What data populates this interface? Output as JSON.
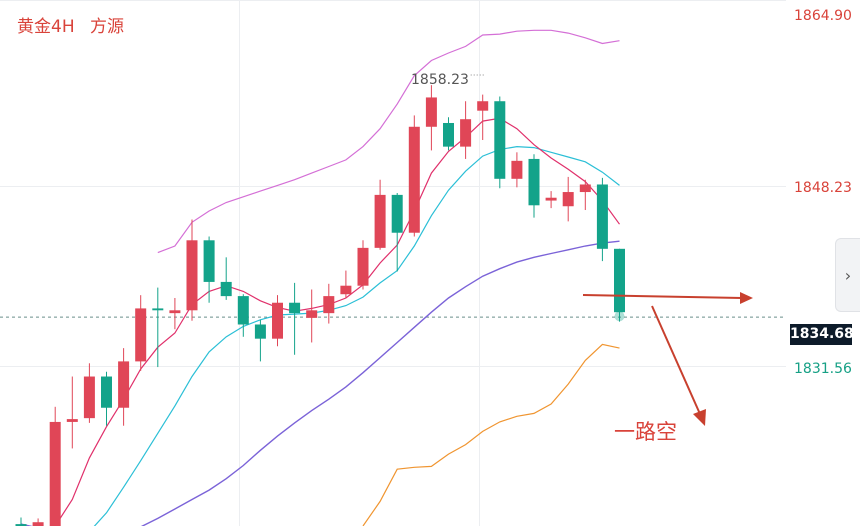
{
  "header": {
    "symbol": "黄金4H",
    "source": "方源"
  },
  "axis": {
    "ticks": [
      {
        "value": 1864.9,
        "label": "1864.90"
      },
      {
        "value": 1848.23,
        "label": "1848.23"
      },
      {
        "value": 1831.56,
        "label": "1831.56"
      }
    ]
  },
  "current_price": "1834.68",
  "annotation": {
    "peak_label": "1858.23",
    "note": "一路空"
  },
  "colors": {
    "up": "#e04657",
    "down": "#13a38a",
    "ma_fast": "#e0306b",
    "ma_mid": "#2bbfd6",
    "ma_slow": "#7b63d8",
    "band_upper": "#d46fd6",
    "band_lower": "#f09530",
    "arrow": "#c8402e"
  },
  "chart_data": {
    "type": "candlestick",
    "title": "黄金4H",
    "ylim": [
      1812.6,
      1868.2
    ],
    "price_labels": [
      1864.9,
      1848.23,
      1834.68,
      1831.56
    ],
    "candles": [
      {
        "o": 1812.8,
        "h": 1813.5,
        "l": 1812.4,
        "c": 1812.6
      },
      {
        "o": 1812.6,
        "h": 1813.4,
        "l": 1812.4,
        "c": 1813.0
      },
      {
        "o": 1812.6,
        "h": 1825.2,
        "l": 1812.6,
        "c": 1823.6
      },
      {
        "o": 1823.6,
        "h": 1828.4,
        "l": 1820.8,
        "c": 1823.9
      },
      {
        "o": 1824.0,
        "h": 1829.8,
        "l": 1823.5,
        "c": 1828.4
      },
      {
        "o": 1828.4,
        "h": 1828.9,
        "l": 1823.2,
        "c": 1825.1
      },
      {
        "o": 1825.1,
        "h": 1831.4,
        "l": 1823.2,
        "c": 1830.0
      },
      {
        "o": 1830.0,
        "h": 1837.0,
        "l": 1829.0,
        "c": 1835.6
      },
      {
        "o": 1835.6,
        "h": 1837.8,
        "l": 1829.4,
        "c": 1835.4
      },
      {
        "o": 1835.1,
        "h": 1836.7,
        "l": 1833.4,
        "c": 1835.4
      },
      {
        "o": 1835.4,
        "h": 1845.0,
        "l": 1834.3,
        "c": 1842.8
      },
      {
        "o": 1842.8,
        "h": 1843.2,
        "l": 1836.2,
        "c": 1838.4
      },
      {
        "o": 1838.4,
        "h": 1841.0,
        "l": 1836.5,
        "c": 1836.9
      },
      {
        "o": 1836.9,
        "h": 1837.1,
        "l": 1832.6,
        "c": 1833.9
      },
      {
        "o": 1833.9,
        "h": 1834.4,
        "l": 1830.0,
        "c": 1832.4
      },
      {
        "o": 1832.4,
        "h": 1837.0,
        "l": 1831.6,
        "c": 1836.2
      },
      {
        "o": 1836.2,
        "h": 1838.3,
        "l": 1830.7,
        "c": 1835.1
      },
      {
        "o": 1834.6,
        "h": 1837.6,
        "l": 1832.0,
        "c": 1835.4
      },
      {
        "o": 1835.1,
        "h": 1838.2,
        "l": 1834.0,
        "c": 1836.9
      },
      {
        "o": 1837.1,
        "h": 1839.6,
        "l": 1836.7,
        "c": 1838.0
      },
      {
        "o": 1838.0,
        "h": 1842.8,
        "l": 1837.6,
        "c": 1842.0
      },
      {
        "o": 1842.0,
        "h": 1849.2,
        "l": 1841.8,
        "c": 1847.6
      },
      {
        "o": 1847.6,
        "h": 1847.8,
        "l": 1839.5,
        "c": 1843.6
      },
      {
        "o": 1843.6,
        "h": 1856.0,
        "l": 1843.2,
        "c": 1854.8
      },
      {
        "o": 1854.8,
        "h": 1859.2,
        "l": 1852.3,
        "c": 1857.9
      },
      {
        "o": 1855.2,
        "h": 1855.8,
        "l": 1852.3,
        "c": 1852.7
      },
      {
        "o": 1852.7,
        "h": 1857.5,
        "l": 1851.4,
        "c": 1855.6
      },
      {
        "o": 1856.5,
        "h": 1858.2,
        "l": 1853.4,
        "c": 1857.5
      },
      {
        "o": 1857.5,
        "h": 1858.0,
        "l": 1848.3,
        "c": 1849.3
      },
      {
        "o": 1849.3,
        "h": 1852.1,
        "l": 1848.4,
        "c": 1851.2
      },
      {
        "o": 1851.4,
        "h": 1851.9,
        "l": 1845.2,
        "c": 1846.5
      },
      {
        "o": 1847.0,
        "h": 1848.0,
        "l": 1846.2,
        "c": 1847.3
      },
      {
        "o": 1846.4,
        "h": 1849.5,
        "l": 1844.8,
        "c": 1847.9
      },
      {
        "o": 1847.9,
        "h": 1849.2,
        "l": 1846.0,
        "c": 1848.7
      },
      {
        "o": 1848.7,
        "h": 1849.4,
        "l": 1840.6,
        "c": 1841.9
      },
      {
        "o": 1841.9,
        "h": 1841.9,
        "l": 1834.2,
        "c": 1835.2
      }
    ],
    "moving_averages": [
      {
        "name": "MA-fast",
        "values": [
          null,
          null,
          1812.6,
          1815.4,
          1819.8,
          1823.1,
          1826.0,
          1829.2,
          1831.5,
          1833.0,
          1836.0,
          1837.4,
          1838.0,
          1837.4,
          1836.4,
          1835.7,
          1835.3,
          1835.6,
          1836.0,
          1836.7,
          1838.1,
          1840.4,
          1842.3,
          1845.9,
          1849.9,
          1852.2,
          1853.7,
          1855.4,
          1855.7,
          1854.6,
          1852.9,
          1851.5,
          1850.3,
          1849.0,
          1847.0,
          1844.5
        ]
      },
      {
        "name": "MA-mid",
        "values": [
          null,
          null,
          null,
          1810.0,
          1812.0,
          1814.0,
          1816.7,
          1819.5,
          1822.4,
          1825.3,
          1828.4,
          1831.0,
          1832.6,
          1833.7,
          1834.4,
          1834.9,
          1835.0,
          1835.1,
          1835.4,
          1835.9,
          1836.8,
          1838.3,
          1839.6,
          1842.2,
          1845.4,
          1848.1,
          1850.1,
          1851.7,
          1852.4,
          1852.7,
          1852.6,
          1852.1,
          1851.6,
          1851.1,
          1850.0,
          1848.6
        ]
      },
      {
        "name": "MA-slow",
        "values": [
          1812.8,
          1812.4,
          1811.8,
          1811.4,
          1811.1,
          1811.2,
          1811.8,
          1812.5,
          1813.4,
          1814.4,
          1815.4,
          1816.4,
          1817.6,
          1819.0,
          1820.6,
          1822.1,
          1823.5,
          1824.8,
          1826.0,
          1827.3,
          1828.8,
          1830.4,
          1832.0,
          1833.6,
          1835.2,
          1836.7,
          1837.9,
          1839.0,
          1839.8,
          1840.5,
          1841.0,
          1841.4,
          1841.8,
          1842.2,
          1842.5,
          1842.7
        ]
      }
    ],
    "bands": [
      {
        "name": "upper",
        "values": [
          null,
          null,
          null,
          null,
          null,
          null,
          null,
          null,
          1841.5,
          1842.2,
          1844.7,
          1845.9,
          1846.8,
          1847.4,
          1848.0,
          1848.6,
          1849.2,
          1849.9,
          1850.6,
          1851.3,
          1852.7,
          1854.6,
          1857.2,
          1860.2,
          1861.8,
          1862.6,
          1863.3,
          1864.5,
          1864.6,
          1864.9,
          1865.0,
          1865.0,
          1864.7,
          1864.2,
          1863.6,
          1863.9
        ]
      },
      {
        "name": "lower",
        "values": [
          null,
          null,
          null,
          null,
          null,
          null,
          null,
          null,
          null,
          null,
          null,
          null,
          null,
          null,
          null,
          null,
          null,
          null,
          null,
          null,
          1812.6,
          1815.2,
          1818.6,
          1818.8,
          1818.9,
          1820.2,
          1821.2,
          1822.6,
          1823.6,
          1824.2,
          1824.5,
          1825.5,
          1827.6,
          1830.1,
          1831.8,
          1831.4
        ]
      }
    ]
  }
}
